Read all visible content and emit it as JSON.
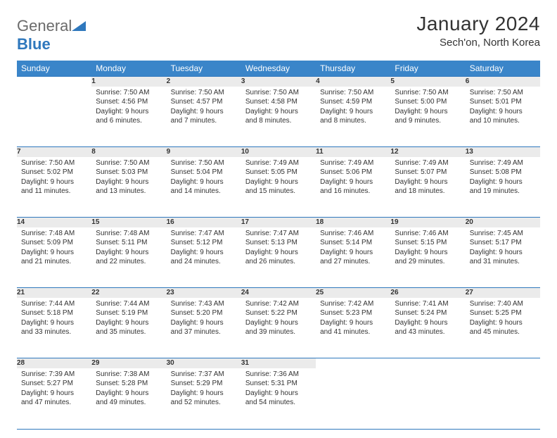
{
  "logo": {
    "part1": "General",
    "part2": "Blue",
    "triangle_color": "#2f78bd"
  },
  "title": "January 2024",
  "location": "Sech'on, North Korea",
  "colors": {
    "header_bg": "#3a85c9",
    "header_text": "#ffffff",
    "daynum_bg": "#ebebeb",
    "border": "#2f78bd",
    "text": "#333333"
  },
  "typography": {
    "title_fontsize": 28,
    "location_fontsize": 15,
    "dayhead_fontsize": 12,
    "cell_fontsize": 10
  },
  "day_headers": [
    "Sunday",
    "Monday",
    "Tuesday",
    "Wednesday",
    "Thursday",
    "Friday",
    "Saturday"
  ],
  "weeks": [
    [
      null,
      {
        "n": "1",
        "sr": "7:50 AM",
        "ss": "4:56 PM",
        "dl": "9 hours and 6 minutes."
      },
      {
        "n": "2",
        "sr": "7:50 AM",
        "ss": "4:57 PM",
        "dl": "9 hours and 7 minutes."
      },
      {
        "n": "3",
        "sr": "7:50 AM",
        "ss": "4:58 PM",
        "dl": "9 hours and 8 minutes."
      },
      {
        "n": "4",
        "sr": "7:50 AM",
        "ss": "4:59 PM",
        "dl": "9 hours and 8 minutes."
      },
      {
        "n": "5",
        "sr": "7:50 AM",
        "ss": "5:00 PM",
        "dl": "9 hours and 9 minutes."
      },
      {
        "n": "6",
        "sr": "7:50 AM",
        "ss": "5:01 PM",
        "dl": "9 hours and 10 minutes."
      }
    ],
    [
      {
        "n": "7",
        "sr": "7:50 AM",
        "ss": "5:02 PM",
        "dl": "9 hours and 11 minutes."
      },
      {
        "n": "8",
        "sr": "7:50 AM",
        "ss": "5:03 PM",
        "dl": "9 hours and 13 minutes."
      },
      {
        "n": "9",
        "sr": "7:50 AM",
        "ss": "5:04 PM",
        "dl": "9 hours and 14 minutes."
      },
      {
        "n": "10",
        "sr": "7:49 AM",
        "ss": "5:05 PM",
        "dl": "9 hours and 15 minutes."
      },
      {
        "n": "11",
        "sr": "7:49 AM",
        "ss": "5:06 PM",
        "dl": "9 hours and 16 minutes."
      },
      {
        "n": "12",
        "sr": "7:49 AM",
        "ss": "5:07 PM",
        "dl": "9 hours and 18 minutes."
      },
      {
        "n": "13",
        "sr": "7:49 AM",
        "ss": "5:08 PM",
        "dl": "9 hours and 19 minutes."
      }
    ],
    [
      {
        "n": "14",
        "sr": "7:48 AM",
        "ss": "5:09 PM",
        "dl": "9 hours and 21 minutes."
      },
      {
        "n": "15",
        "sr": "7:48 AM",
        "ss": "5:11 PM",
        "dl": "9 hours and 22 minutes."
      },
      {
        "n": "16",
        "sr": "7:47 AM",
        "ss": "5:12 PM",
        "dl": "9 hours and 24 minutes."
      },
      {
        "n": "17",
        "sr": "7:47 AM",
        "ss": "5:13 PM",
        "dl": "9 hours and 26 minutes."
      },
      {
        "n": "18",
        "sr": "7:46 AM",
        "ss": "5:14 PM",
        "dl": "9 hours and 27 minutes."
      },
      {
        "n": "19",
        "sr": "7:46 AM",
        "ss": "5:15 PM",
        "dl": "9 hours and 29 minutes."
      },
      {
        "n": "20",
        "sr": "7:45 AM",
        "ss": "5:17 PM",
        "dl": "9 hours and 31 minutes."
      }
    ],
    [
      {
        "n": "21",
        "sr": "7:44 AM",
        "ss": "5:18 PM",
        "dl": "9 hours and 33 minutes."
      },
      {
        "n": "22",
        "sr": "7:44 AM",
        "ss": "5:19 PM",
        "dl": "9 hours and 35 minutes."
      },
      {
        "n": "23",
        "sr": "7:43 AM",
        "ss": "5:20 PM",
        "dl": "9 hours and 37 minutes."
      },
      {
        "n": "24",
        "sr": "7:42 AM",
        "ss": "5:22 PM",
        "dl": "9 hours and 39 minutes."
      },
      {
        "n": "25",
        "sr": "7:42 AM",
        "ss": "5:23 PM",
        "dl": "9 hours and 41 minutes."
      },
      {
        "n": "26",
        "sr": "7:41 AM",
        "ss": "5:24 PM",
        "dl": "9 hours and 43 minutes."
      },
      {
        "n": "27",
        "sr": "7:40 AM",
        "ss": "5:25 PM",
        "dl": "9 hours and 45 minutes."
      }
    ],
    [
      {
        "n": "28",
        "sr": "7:39 AM",
        "ss": "5:27 PM",
        "dl": "9 hours and 47 minutes."
      },
      {
        "n": "29",
        "sr": "7:38 AM",
        "ss": "5:28 PM",
        "dl": "9 hours and 49 minutes."
      },
      {
        "n": "30",
        "sr": "7:37 AM",
        "ss": "5:29 PM",
        "dl": "9 hours and 52 minutes."
      },
      {
        "n": "31",
        "sr": "7:36 AM",
        "ss": "5:31 PM",
        "dl": "9 hours and 54 minutes."
      },
      null,
      null,
      null
    ]
  ],
  "labels": {
    "sunrise": "Sunrise:",
    "sunset": "Sunset:",
    "daylight": "Daylight:"
  }
}
